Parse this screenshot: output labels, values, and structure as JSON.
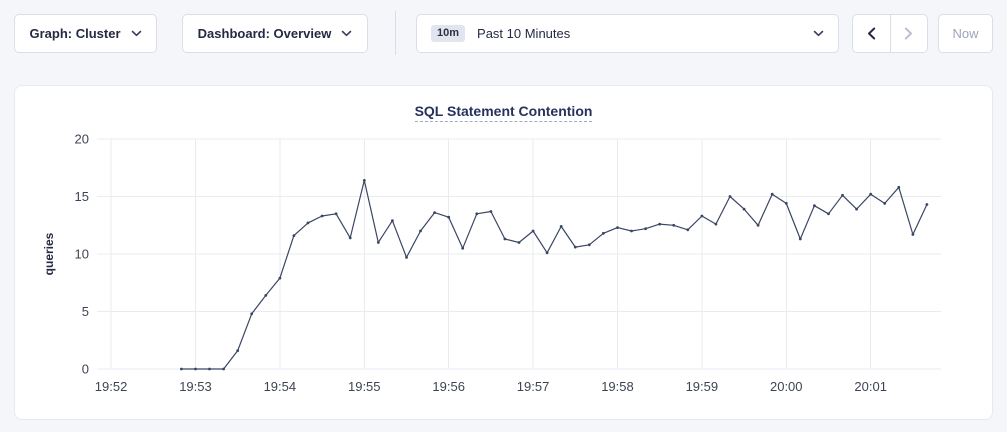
{
  "toolbar": {
    "graph_selector": {
      "label": "Graph: Cluster",
      "icon": "chevron-down-icon"
    },
    "dashboard_selector": {
      "label": "Dashboard: Overview",
      "icon": "chevron-down-icon"
    },
    "time_picker": {
      "badge": "10m",
      "label": "Past 10 Minutes",
      "icon": "chevron-down-icon"
    },
    "prev_button": {
      "icon": "chevron-left-icon",
      "enabled": true
    },
    "next_button": {
      "icon": "chevron-right-icon",
      "enabled": false
    },
    "now_button": {
      "label": "Now",
      "enabled": false
    }
  },
  "colors": {
    "page_bg": "#f5f6fa",
    "card_bg": "#ffffff",
    "line": "#3a4663",
    "grid": "#e9ebef",
    "title": "#26325c",
    "tick_text": "#3d4453",
    "disabled_text": "#9ca5b8"
  },
  "chart_data": {
    "type": "line",
    "title": "SQL Statement Contention",
    "xlabel": "",
    "ylabel": "queries",
    "ylim": [
      0,
      20
    ],
    "y_ticks": [
      0,
      5,
      10,
      15,
      20
    ],
    "grid": true,
    "legend_position": "none",
    "x_window": {
      "start_label": "19:51:50",
      "end_label": "20:01:50",
      "seconds": 600
    },
    "x_ticks": [
      {
        "sec": 10,
        "label": "19:52"
      },
      {
        "sec": 70,
        "label": "19:53"
      },
      {
        "sec": 130,
        "label": "19:54"
      },
      {
        "sec": 190,
        "label": "19:55"
      },
      {
        "sec": 250,
        "label": "19:56"
      },
      {
        "sec": 310,
        "label": "19:57"
      },
      {
        "sec": 370,
        "label": "19:58"
      },
      {
        "sec": 430,
        "label": "19:59"
      },
      {
        "sec": 490,
        "label": "20:00"
      },
      {
        "sec": 550,
        "label": "20:01"
      }
    ],
    "series": [
      {
        "name": "SQL Statement Contention",
        "color": "#3a4663",
        "points": [
          [
            60,
            0
          ],
          [
            70,
            0
          ],
          [
            80,
            0
          ],
          [
            90,
            0
          ],
          [
            100,
            1.6
          ],
          [
            110,
            4.8
          ],
          [
            120,
            6.4
          ],
          [
            130,
            7.9
          ],
          [
            140,
            11.6
          ],
          [
            150,
            12.7
          ],
          [
            160,
            13.3
          ],
          [
            170,
            13.5
          ],
          [
            180,
            11.4
          ],
          [
            190,
            16.4
          ],
          [
            200,
            11.0
          ],
          [
            210,
            12.9
          ],
          [
            220,
            9.7
          ],
          [
            230,
            12.0
          ],
          [
            240,
            13.6
          ],
          [
            250,
            13.2
          ],
          [
            260,
            10.5
          ],
          [
            270,
            13.5
          ],
          [
            280,
            13.7
          ],
          [
            290,
            11.3
          ],
          [
            300,
            11.0
          ],
          [
            310,
            12.0
          ],
          [
            320,
            10.1
          ],
          [
            330,
            12.4
          ],
          [
            340,
            10.6
          ],
          [
            350,
            10.8
          ],
          [
            360,
            11.8
          ],
          [
            370,
            12.3
          ],
          [
            380,
            12.0
          ],
          [
            390,
            12.2
          ],
          [
            400,
            12.6
          ],
          [
            410,
            12.5
          ],
          [
            420,
            12.1
          ],
          [
            430,
            13.3
          ],
          [
            440,
            12.6
          ],
          [
            450,
            15.0
          ],
          [
            460,
            13.9
          ],
          [
            470,
            12.5
          ],
          [
            480,
            15.2
          ],
          [
            490,
            14.4
          ],
          [
            500,
            11.3
          ],
          [
            510,
            14.2
          ],
          [
            520,
            13.5
          ],
          [
            530,
            15.1
          ],
          [
            540,
            13.9
          ],
          [
            550,
            15.2
          ],
          [
            560,
            14.4
          ],
          [
            570,
            15.8
          ],
          [
            580,
            11.7
          ],
          [
            590,
            14.3
          ]
        ]
      }
    ]
  }
}
